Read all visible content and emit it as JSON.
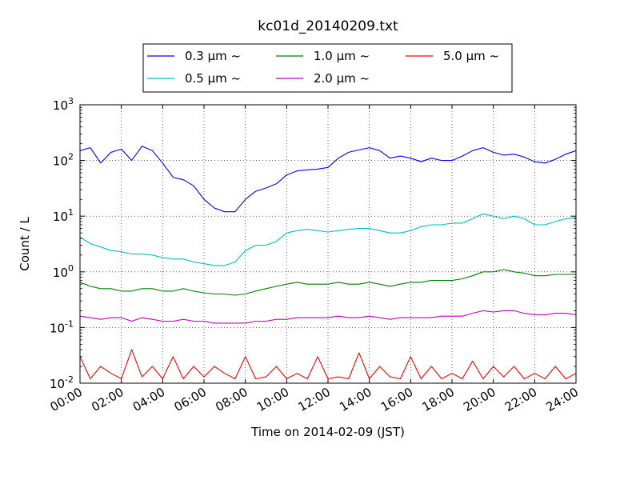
{
  "chart_data": {
    "type": "line",
    "title": "kc01d_20140209.txt",
    "xlabel": "Time on 2014-02-09 (JST)",
    "ylabel": "Count / L",
    "y_scale": "log",
    "ylim": [
      0.01,
      1000
    ],
    "xlim": [
      "00:00",
      "24:00"
    ],
    "x_tick_labels": [
      "00:00",
      "02:00",
      "04:00",
      "06:00",
      "08:00",
      "10:00",
      "12:00",
      "14:00",
      "16:00",
      "18:00",
      "20:00",
      "22:00",
      "24:00"
    ],
    "y_ticks": [
      {
        "base": "10",
        "exp": "-2"
      },
      {
        "base": "10",
        "exp": "-1"
      },
      {
        "base": "10",
        "exp": "0"
      },
      {
        "base": "10",
        "exp": "1"
      },
      {
        "base": "10",
        "exp": "2"
      },
      {
        "base": "10",
        "exp": "3"
      }
    ],
    "grid": true,
    "legend_position": "top-center",
    "x_hours": [
      0,
      0.5,
      1,
      1.5,
      2,
      2.5,
      3,
      3.5,
      4,
      4.5,
      5,
      5.5,
      6,
      6.5,
      7,
      7.5,
      8,
      8.5,
      9,
      9.5,
      10,
      10.5,
      11,
      11.5,
      12,
      12.5,
      13,
      13.5,
      14,
      14.5,
      15,
      15.5,
      16,
      16.5,
      17,
      17.5,
      18,
      18.5,
      19,
      19.5,
      20,
      20.5,
      21,
      21.5,
      22,
      22.5,
      23,
      23.5,
      24
    ],
    "series": [
      {
        "name": "0.3 μm  ~",
        "color": "#0000ff",
        "values": [
          150,
          170,
          90,
          140,
          160,
          100,
          180,
          150,
          90,
          50,
          45,
          35,
          20,
          14,
          12,
          12,
          20,
          28,
          32,
          38,
          55,
          65,
          68,
          70,
          75,
          110,
          140,
          155,
          170,
          150,
          110,
          120,
          110,
          95,
          110,
          100,
          100,
          120,
          150,
          170,
          140,
          125,
          130,
          115,
          95,
          90,
          105,
          130,
          150
        ]
      },
      {
        "name": "0.5 μm  ~",
        "color": "#00bfbf",
        "values": [
          4.2,
          3.2,
          2.8,
          2.4,
          2.3,
          2.1,
          2.1,
          2.0,
          1.8,
          1.7,
          1.7,
          1.5,
          1.4,
          1.3,
          1.3,
          1.5,
          2.4,
          3.0,
          3.0,
          3.5,
          5.0,
          5.5,
          5.8,
          5.5,
          5.2,
          5.5,
          5.8,
          6.0,
          6.0,
          5.5,
          5.0,
          5.0,
          5.5,
          6.5,
          7.0,
          7.0,
          7.5,
          7.5,
          9.0,
          11,
          10,
          9.0,
          10,
          9.0,
          7.0,
          7.0,
          8.0,
          9.0,
          9.5
        ]
      },
      {
        "name": "1.0 μm  ~",
        "color": "#008000",
        "values": [
          0.65,
          0.55,
          0.5,
          0.5,
          0.45,
          0.45,
          0.5,
          0.5,
          0.45,
          0.45,
          0.5,
          0.45,
          0.42,
          0.4,
          0.4,
          0.38,
          0.4,
          0.45,
          0.5,
          0.55,
          0.6,
          0.65,
          0.6,
          0.6,
          0.6,
          0.65,
          0.6,
          0.6,
          0.65,
          0.6,
          0.55,
          0.6,
          0.65,
          0.65,
          0.7,
          0.7,
          0.7,
          0.75,
          0.85,
          1.0,
          1.0,
          1.1,
          1.0,
          0.95,
          0.85,
          0.85,
          0.9,
          0.9,
          0.9
        ]
      },
      {
        "name": "2.0 μm  ~",
        "color": "#bf00bf",
        "values": [
          0.16,
          0.15,
          0.14,
          0.15,
          0.15,
          0.13,
          0.15,
          0.14,
          0.13,
          0.13,
          0.14,
          0.13,
          0.13,
          0.12,
          0.12,
          0.12,
          0.12,
          0.13,
          0.13,
          0.14,
          0.14,
          0.15,
          0.15,
          0.15,
          0.15,
          0.16,
          0.15,
          0.15,
          0.16,
          0.15,
          0.14,
          0.15,
          0.15,
          0.15,
          0.15,
          0.16,
          0.16,
          0.16,
          0.18,
          0.2,
          0.19,
          0.2,
          0.2,
          0.18,
          0.17,
          0.17,
          0.18,
          0.18,
          0.17
        ]
      },
      {
        "name": "5.0 μm  ~",
        "color": "#ff0000",
        "values": [
          0.03,
          0.012,
          0.02,
          0.015,
          0.012,
          0.04,
          0.013,
          0.02,
          0.012,
          0.03,
          0.012,
          0.02,
          0.013,
          0.02,
          0.015,
          0.012,
          0.03,
          0.012,
          0.013,
          0.02,
          0.012,
          0.015,
          0.012,
          0.03,
          0.012,
          0.013,
          0.012,
          0.035,
          0.012,
          0.02,
          0.013,
          0.012,
          0.03,
          0.012,
          0.02,
          0.012,
          0.015,
          0.012,
          0.025,
          0.012,
          0.02,
          0.013,
          0.02,
          0.012,
          0.015,
          0.012,
          0.02,
          0.012,
          0.015
        ]
      }
    ]
  }
}
